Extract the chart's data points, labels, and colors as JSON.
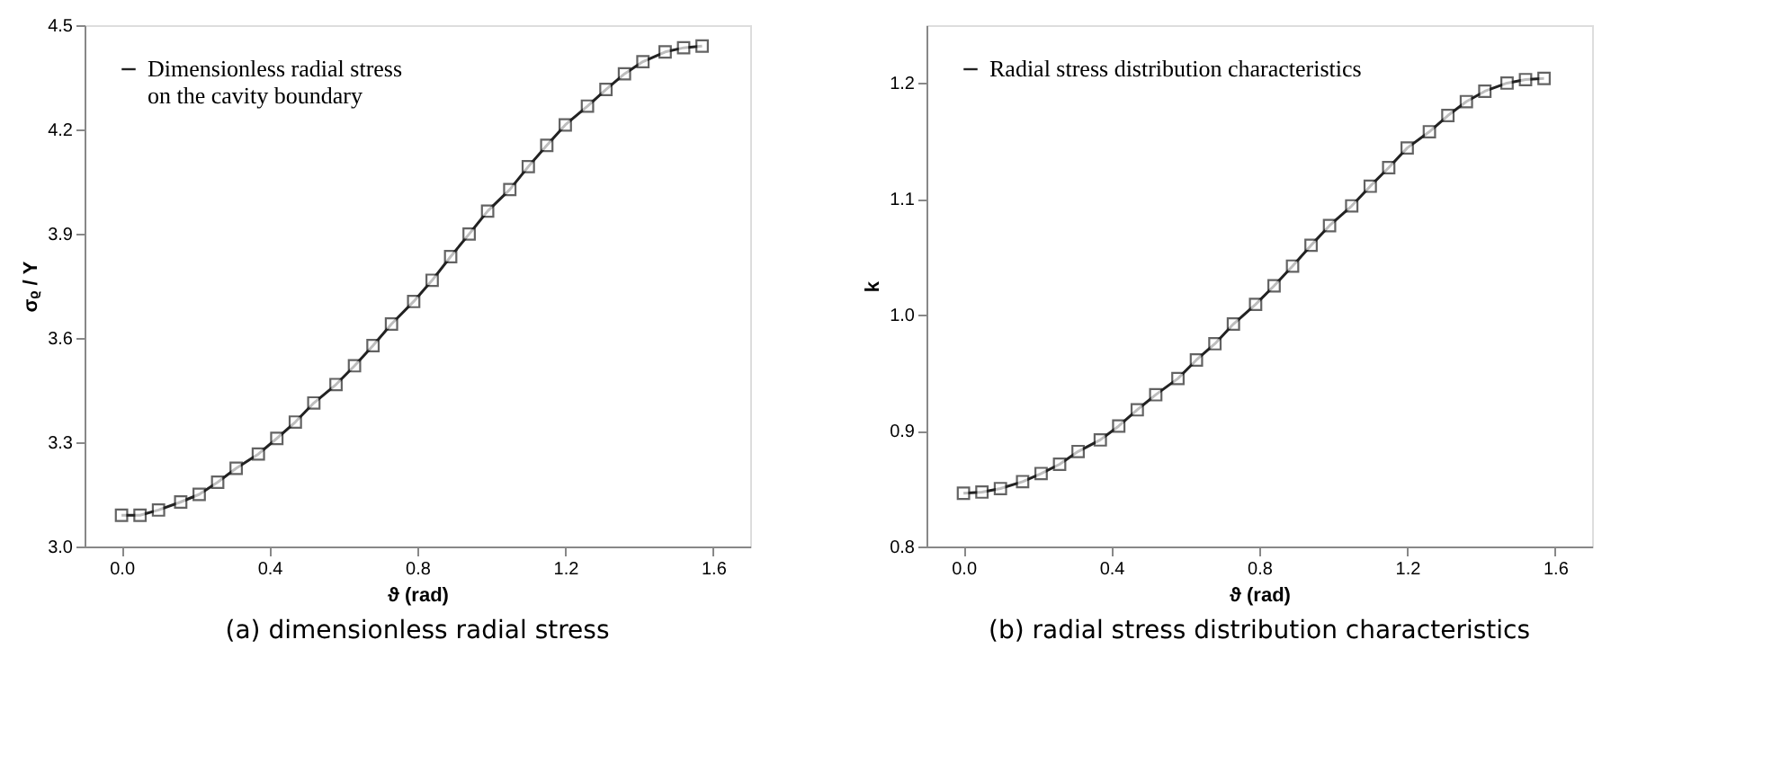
{
  "chart_data": [
    {
      "type": "line",
      "xlabel": "ϑ (rad)",
      "ylabel": "σᵨ / Y",
      "annotations": [
        "(a) dimensionless radial stress"
      ],
      "x": [
        0,
        0.05,
        0.1,
        0.16,
        0.21,
        0.26,
        0.31,
        0.37,
        0.42,
        0.47,
        0.52,
        0.58,
        0.63,
        0.68,
        0.73,
        0.79,
        0.84,
        0.89,
        0.94,
        0.99,
        1.05,
        1.1,
        1.15,
        1.2,
        1.26,
        1.31,
        1.36,
        1.41,
        1.47,
        1.52,
        1.57
      ],
      "series": [
        {
          "name": "Dimensionless radial stress\non the cavity boundary",
          "color": "#222222",
          "values": [
            3.09,
            3.09,
            3.105,
            3.128,
            3.15,
            3.185,
            3.225,
            3.266,
            3.311,
            3.358,
            3.413,
            3.466,
            3.52,
            3.578,
            3.64,
            3.705,
            3.766,
            3.834,
            3.899,
            3.965,
            4.027,
            4.093,
            4.154,
            4.213,
            4.267,
            4.315,
            4.36,
            4.395,
            4.423,
            4.435,
            4.44
          ]
        }
      ],
      "xlim": [
        -0.1,
        1.7
      ],
      "xticks": [
        {
          "value": 0,
          "label": "0.0"
        },
        0.4,
        0.8,
        1.2,
        1.6
      ],
      "ylim": [
        3.0,
        4.5
      ],
      "yticks": [
        {
          "value": 3,
          "label": "3.0"
        },
        3.3,
        3.6,
        3.9,
        4.2,
        4.5
      ],
      "grid": false,
      "legend": "top left",
      "marker": "square",
      "line_style": "solid"
    },
    {
      "type": "line",
      "xlabel": "ϑ (rad)",
      "ylabel": "k",
      "annotations": [
        "(b) radial stress distribution characteristics"
      ],
      "x": [
        0,
        0.05,
        0.1,
        0.16,
        0.21,
        0.26,
        0.31,
        0.37,
        0.42,
        0.47,
        0.52,
        0.58,
        0.63,
        0.68,
        0.73,
        0.79,
        0.84,
        0.89,
        0.94,
        0.99,
        1.05,
        1.1,
        1.15,
        1.2,
        1.26,
        1.31,
        1.36,
        1.41,
        1.47,
        1.52,
        1.57
      ],
      "series": [
        {
          "name": "Radial stress distribution characteristics",
          "color": "#222222",
          "values": [
            0.846,
            0.847,
            0.85,
            0.856,
            0.863,
            0.871,
            0.882,
            0.892,
            0.904,
            0.918,
            0.931,
            0.945,
            0.961,
            0.975,
            0.992,
            1.009,
            1.025,
            1.042,
            1.06,
            1.077,
            1.094,
            1.111,
            1.127,
            1.144,
            1.158,
            1.172,
            1.184,
            1.193,
            1.2,
            1.203,
            1.204
          ]
        }
      ],
      "xlim": [
        -0.1,
        1.7
      ],
      "xticks": [
        {
          "value": 0,
          "label": "0.0"
        },
        0.4,
        0.8,
        1.2,
        1.6
      ],
      "ylim": [
        0.8,
        1.25
      ],
      "yticks": [
        0.8,
        0.9,
        {
          "value": 1,
          "label": "1.0"
        },
        1.1,
        1.2
      ],
      "grid": false,
      "legend": "top left",
      "marker": "square",
      "line_style": "solid"
    }
  ]
}
